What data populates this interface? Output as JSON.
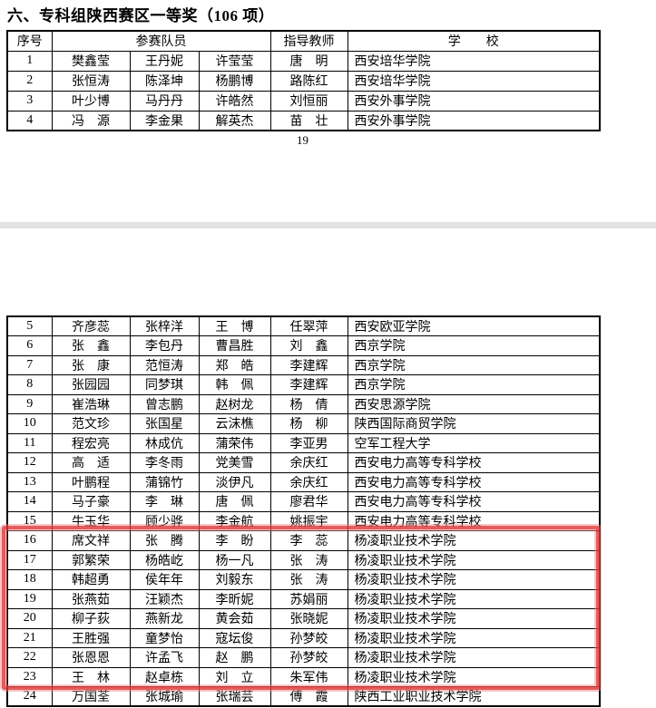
{
  "title": "六、专科组陕西赛区一等奖（106 项）",
  "page_number": "19",
  "columns": {
    "index": "序号",
    "members": "参赛队员",
    "teacher": "指导教师",
    "school": "学　　校"
  },
  "highlight": {
    "from_row": "16",
    "to_row": "23",
    "color": "#e13737"
  },
  "rows_page1": [
    {
      "no": "1",
      "members": [
        "樊鑫莹",
        "王丹妮",
        "许莹莹"
      ],
      "teacher": "唐　明",
      "school": "西安培华学院"
    },
    {
      "no": "2",
      "members": [
        "张恒涛",
        "陈泽坤",
        "杨鹏博"
      ],
      "teacher": "路陈红",
      "school": "西安培华学院"
    },
    {
      "no": "3",
      "members": [
        "叶少博",
        "马丹丹",
        "许皓然"
      ],
      "teacher": "刘恒丽",
      "school": "西安外事学院"
    },
    {
      "no": "4",
      "members": [
        "冯　源",
        "李金果",
        "解英杰"
      ],
      "teacher": "苗　壮",
      "school": "西安外事学院"
    }
  ],
  "rows_page2": [
    {
      "no": "5",
      "members": [
        "齐彦蕊",
        "张梓洋",
        "王　博"
      ],
      "teacher": "任翠萍",
      "school": "西安欧亚学院"
    },
    {
      "no": "6",
      "members": [
        "张　鑫",
        "李包丹",
        "曹昌胜"
      ],
      "teacher": "刘　鑫",
      "school": "西京学院"
    },
    {
      "no": "7",
      "members": [
        "张　康",
        "范恒涛",
        "郑　皓"
      ],
      "teacher": "李建辉",
      "school": "西京学院"
    },
    {
      "no": "8",
      "members": [
        "张园园",
        "同梦琪",
        "韩　佩"
      ],
      "teacher": "李建辉",
      "school": "西京学院"
    },
    {
      "no": "9",
      "members": [
        "崔浩琳",
        "曾志鹏",
        "赵树龙"
      ],
      "teacher": "杨　倩",
      "school": "西安思源学院"
    },
    {
      "no": "10",
      "members": [
        "范文珍",
        "张国星",
        "云沫樵"
      ],
      "teacher": "杨　柳",
      "school": "陕西国际商贸学院"
    },
    {
      "no": "11",
      "members": [
        "程宏亮",
        "林成伉",
        "蒲荣伟"
      ],
      "teacher": "李亚男",
      "school": "空军工程大学"
    },
    {
      "no": "12",
      "members": [
        "高　适",
        "李冬雨",
        "党美雪"
      ],
      "teacher": "余庆红",
      "school": "西安电力高等专科学校"
    },
    {
      "no": "13",
      "members": [
        "叶鹏程",
        "蒲锦竹",
        "淡伊凡"
      ],
      "teacher": "余庆红",
      "school": "西安电力高等专科学校"
    },
    {
      "no": "14",
      "members": [
        "马子豪",
        "李　琳",
        "唐　佩"
      ],
      "teacher": "廖君华",
      "school": "西安电力高等专科学校"
    },
    {
      "no": "15",
      "members": [
        "牛玉华",
        "顾少骅",
        "李金航"
      ],
      "teacher": "姚振宇",
      "school": "西安电力高等专科学校"
    },
    {
      "no": "16",
      "members": [
        "席文祥",
        "张　腾",
        "李　盼"
      ],
      "teacher": "李　蕊",
      "school": "杨凌职业技术学院"
    },
    {
      "no": "17",
      "members": [
        "郭繁荣",
        "杨皓屹",
        "杨一凡"
      ],
      "teacher": "张　涛",
      "school": "杨凌职业技术学院"
    },
    {
      "no": "18",
      "members": [
        "韩超勇",
        "侯年年",
        "刘毅东"
      ],
      "teacher": "张　涛",
      "school": "杨凌职业技术学院"
    },
    {
      "no": "19",
      "members": [
        "张燕茹",
        "汪颖杰",
        "李昕妮"
      ],
      "teacher": "苏娟丽",
      "school": "杨凌职业技术学院"
    },
    {
      "no": "20",
      "members": [
        "柳子荻",
        "燕新龙",
        "黄会茹"
      ],
      "teacher": "张晓妮",
      "school": "杨凌职业技术学院"
    },
    {
      "no": "21",
      "members": [
        "王胜强",
        "童梦怡",
        "寇坛俊"
      ],
      "teacher": "孙梦皎",
      "school": "杨凌职业技术学院"
    },
    {
      "no": "22",
      "members": [
        "张恩恩",
        "许孟飞",
        "赵　鹏"
      ],
      "teacher": "孙梦皎",
      "school": "杨凌职业技术学院"
    },
    {
      "no": "23",
      "members": [
        "王　林",
        "赵卓栋",
        "刘　立"
      ],
      "teacher": "朱军伟",
      "school": "杨凌职业技术学院"
    },
    {
      "no": "24",
      "members": [
        "万国荃",
        "张城瑜",
        "张瑞芸"
      ],
      "teacher": "傅　霞",
      "school": "陕西工业职业技术学院"
    }
  ]
}
